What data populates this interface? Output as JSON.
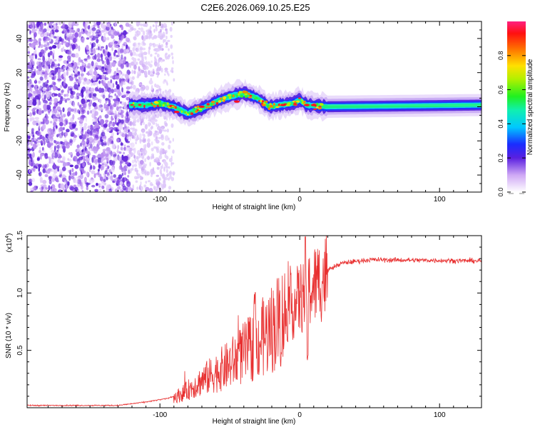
{
  "title": "C2E6.2026.069.10.25.E25",
  "chart_data": [
    {
      "type": "heatmap",
      "title": "C2E6.2026.069.10.25.E25",
      "xlabel": "Height of straight line (km)",
      "ylabel": "Frequency (Hz)",
      "xlim": [
        -195,
        130
      ],
      "ylim": [
        -50,
        50
      ],
      "xticks": [
        -100,
        0,
        100
      ],
      "yticks": [
        -40,
        -20,
        0,
        20,
        40
      ],
      "colorbar": {
        "label": "Normalized spectral amplitude",
        "range": [
          0,
          1
        ],
        "ticks": [
          "0.0",
          "0.2",
          "0.4",
          "0.6",
          "0.8"
        ],
        "tick_values": [
          0.0,
          0.2,
          0.4,
          0.6,
          0.8
        ]
      },
      "ridge": {
        "description_points": [
          {
            "x": -122,
            "y": 1
          },
          {
            "x": -110,
            "y": 1
          },
          {
            "x": -100,
            "y": 2
          },
          {
            "x": -90,
            "y": 0
          },
          {
            "x": -80,
            "y": -4
          },
          {
            "x": -70,
            "y": -1
          },
          {
            "x": -60,
            "y": 3
          },
          {
            "x": -50,
            "y": 6
          },
          {
            "x": -40,
            "y": 8
          },
          {
            "x": -30,
            "y": 5
          },
          {
            "x": -22,
            "y": 0
          },
          {
            "x": -15,
            "y": 1
          },
          {
            "x": -5,
            "y": 2
          },
          {
            "x": 0,
            "y": 4
          },
          {
            "x": 5,
            "y": 1
          },
          {
            "x": 20,
            "y": 0
          },
          {
            "x": 130,
            "y": 1
          }
        ],
        "noise_region_x": [
          -195,
          -95
        ]
      }
    },
    {
      "type": "line",
      "xlabel": "Height of straight line (km)",
      "ylabel": "SNR (10 * v/v)",
      "scale_label": "(x10",
      "scale_exponent": "4",
      "scale_close": ")",
      "xlim": [
        -195,
        130
      ],
      "ylim": [
        0,
        1.5
      ],
      "xticks": [
        -100,
        0,
        100
      ],
      "yticks": [
        "0.5",
        "1.0",
        "1.5"
      ],
      "ytick_values": [
        0.5,
        1.0,
        1.5
      ],
      "color": "#e83030",
      "envelope": [
        {
          "x": -195,
          "y": 0.02
        },
        {
          "x": -130,
          "y": 0.02
        },
        {
          "x": -110,
          "y": 0.05
        },
        {
          "x": -95,
          "y": 0.08
        },
        {
          "x": -85,
          "y": 0.12
        },
        {
          "x": -70,
          "y": 0.25
        },
        {
          "x": -50,
          "y": 0.4
        },
        {
          "x": -30,
          "y": 0.6
        },
        {
          "x": -15,
          "y": 0.8
        },
        {
          "x": 0,
          "y": 0.98
        },
        {
          "x": 10,
          "y": 1.1
        },
        {
          "x": 20,
          "y": 1.2
        },
        {
          "x": 30,
          "y": 1.26
        },
        {
          "x": 50,
          "y": 1.29
        },
        {
          "x": 130,
          "y": 1.28
        }
      ],
      "features": [
        {
          "x": 4,
          "y": 1.49,
          "label": "peak"
        },
        {
          "x": 5,
          "y": 0.38,
          "label": "dip"
        },
        {
          "x": -32,
          "y": 1.05,
          "label": "spike"
        }
      ]
    }
  ]
}
